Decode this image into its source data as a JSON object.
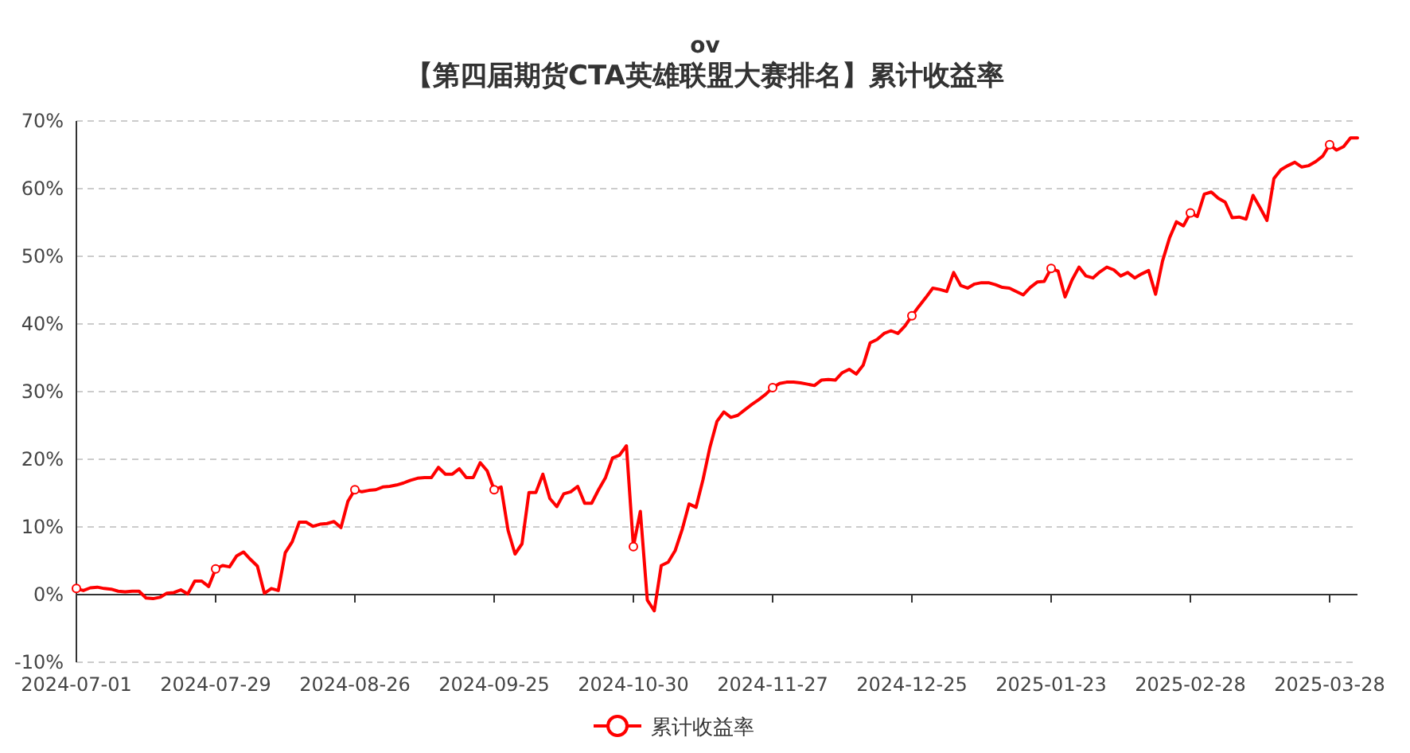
{
  "chart_data": {
    "type": "line",
    "title": "ov",
    "subtitle": "【第四届期货CTA英雄联盟大赛排名】累计收益率",
    "categories": [
      "2024-07-01",
      null,
      null,
      null,
      null,
      null,
      null,
      null,
      null,
      null,
      null,
      null,
      null,
      null,
      null,
      null,
      null,
      null,
      null,
      null,
      "2024-07-29",
      null,
      null,
      null,
      null,
      null,
      null,
      null,
      null,
      null,
      null,
      null,
      null,
      null,
      null,
      null,
      null,
      null,
      null,
      null,
      "2024-08-26",
      null,
      null,
      null,
      null,
      null,
      null,
      null,
      null,
      null,
      null,
      null,
      null,
      null,
      null,
      null,
      null,
      null,
      null,
      null,
      "2024-09-25",
      null,
      null,
      null,
      null,
      null,
      null,
      null,
      null,
      null,
      null,
      null,
      null,
      null,
      null,
      null,
      null,
      null,
      null,
      null,
      "2024-10-30",
      null,
      null,
      null,
      null,
      null,
      null,
      null,
      null,
      null,
      null,
      null,
      null,
      null,
      null,
      null,
      null,
      null,
      null,
      null,
      "2024-11-27",
      null,
      null,
      null,
      null,
      null,
      null,
      null,
      null,
      null,
      null,
      null,
      null,
      null,
      null,
      null,
      null,
      null,
      null,
      null,
      "2024-12-25",
      null,
      null,
      null,
      null,
      null,
      null,
      null,
      null,
      null,
      null,
      null,
      null,
      null,
      null,
      null,
      null,
      null,
      null,
      null,
      "2025-01-23",
      null,
      null,
      null,
      null,
      null,
      null,
      null,
      null,
      null,
      null,
      null,
      null,
      null,
      null,
      null,
      null,
      null,
      null,
      null,
      "2025-02-28",
      null,
      null,
      null,
      null,
      null,
      null,
      null,
      null,
      null,
      null,
      null,
      null,
      null,
      null,
      null,
      null,
      null,
      null,
      null,
      "2025-03-28",
      null,
      null,
      null,
      null
    ],
    "series": [
      {
        "name": "累计收益率",
        "color": "#ff0000",
        "values": [
          0.9,
          0.6,
          1.0,
          1.1,
          0.9,
          0.8,
          0.5,
          0.4,
          0.5,
          0.5,
          -0.5,
          -0.6,
          -0.4,
          0.2,
          0.3,
          0.7,
          0.1,
          2.0,
          2.0,
          1.2,
          3.8,
          4.3,
          4.1,
          5.7,
          6.3,
          5.2,
          4.2,
          0.2,
          0.9,
          0.6,
          6.2,
          7.8,
          10.7,
          10.7,
          10.1,
          10.4,
          10.5,
          10.8,
          9.9,
          13.8,
          15.5,
          15.2,
          15.4,
          15.5,
          15.9,
          16.0,
          16.2,
          16.5,
          16.9,
          17.2,
          17.3,
          17.3,
          18.8,
          17.8,
          17.8,
          18.6,
          17.3,
          17.3,
          19.5,
          18.3,
          15.5,
          15.9,
          9.5,
          6.0,
          7.5,
          15.1,
          15.1,
          17.8,
          14.2,
          13.0,
          14.9,
          15.2,
          16.0,
          13.5,
          13.5,
          15.5,
          17.3,
          20.2,
          20.6,
          22.0,
          7.1,
          12.3,
          -0.8,
          -2.4,
          4.3,
          4.8,
          6.5,
          9.6,
          13.4,
          12.9,
          17.0,
          21.8,
          25.6,
          27.0,
          26.2,
          26.5,
          27.3,
          28.1,
          28.8,
          29.6,
          30.6,
          31.2,
          31.4,
          31.4,
          31.3,
          31.1,
          30.9,
          31.7,
          31.8,
          31.7,
          32.8,
          33.3,
          32.6,
          33.9,
          37.2,
          37.7,
          38.6,
          39.0,
          38.6,
          39.7,
          41.2,
          42.6,
          43.9,
          45.3,
          45.1,
          44.8,
          47.6,
          45.7,
          45.3,
          45.9,
          46.1,
          46.1,
          45.8,
          45.4,
          45.3,
          44.8,
          44.3,
          45.4,
          46.2,
          46.3,
          48.2,
          47.8,
          44.0,
          46.5,
          48.4,
          47.1,
          46.8,
          47.7,
          48.4,
          48.0,
          47.1,
          47.6,
          46.8,
          47.4,
          47.9,
          44.4,
          49.3,
          52.7,
          55.1,
          54.5,
          56.4,
          55.9,
          59.2,
          59.5,
          58.6,
          58.0,
          55.7,
          55.8,
          55.5,
          59.0,
          57.2,
          55.3,
          61.5,
          62.8,
          63.4,
          63.9,
          63.2,
          63.4,
          64.0,
          64.8,
          66.5,
          65.7,
          66.2,
          67.5,
          67.5
        ]
      },
      {
        "type": "scatter",
        "color": "#ff0000",
        "marker": "circle",
        "values": [
          0.9,
          null,
          null,
          null,
          null,
          null,
          null,
          null,
          null,
          null,
          null,
          null,
          null,
          null,
          null,
          null,
          null,
          null,
          null,
          null,
          3.8,
          null,
          null,
          null,
          null,
          null,
          null,
          null,
          null,
          null,
          null,
          null,
          null,
          null,
          null,
          null,
          null,
          null,
          null,
          null,
          15.5,
          null,
          null,
          null,
          null,
          null,
          null,
          null,
          null,
          null,
          null,
          null,
          null,
          null,
          null,
          null,
          null,
          null,
          null,
          null,
          15.5,
          null,
          null,
          null,
          null,
          null,
          null,
          null,
          null,
          null,
          null,
          null,
          null,
          null,
          null,
          null,
          null,
          null,
          null,
          null,
          7.1,
          null,
          null,
          null,
          null,
          null,
          null,
          null,
          null,
          null,
          null,
          null,
          null,
          null,
          null,
          null,
          null,
          null,
          null,
          null,
          30.6,
          null,
          null,
          null,
          null,
          null,
          null,
          null,
          null,
          null,
          null,
          null,
          null,
          null,
          null,
          null,
          null,
          null,
          null,
          null,
          41.2,
          null,
          null,
          null,
          null,
          null,
          null,
          null,
          null,
          null,
          null,
          null,
          null,
          null,
          null,
          null,
          null,
          null,
          null,
          null,
          48.2,
          null,
          null,
          null,
          null,
          null,
          null,
          null,
          null,
          null,
          null,
          null,
          null,
          null,
          null,
          null,
          null,
          null,
          null,
          null,
          56.4,
          null,
          null,
          null,
          null,
          null,
          null,
          null,
          null,
          null,
          null,
          null,
          null,
          null,
          null,
          null,
          null,
          null,
          null,
          null,
          66.5,
          null,
          null,
          null,
          null
        ]
      }
    ],
    "ylim": [
      -10,
      70
    ],
    "yticks": [
      {
        "value": -10,
        "label": "-10%"
      },
      {
        "value": 0,
        "label": "0%"
      },
      {
        "value": 10,
        "label": "10%"
      },
      {
        "value": 20,
        "label": "20%"
      },
      {
        "value": 30,
        "label": "30%"
      },
      {
        "value": 40,
        "label": "40%"
      },
      {
        "value": 50,
        "label": "50%"
      },
      {
        "value": 60,
        "label": "60%"
      },
      {
        "value": 70,
        "label": "70%"
      }
    ],
    "grid": "y",
    "legend": "bottom",
    "line_style": "solid"
  }
}
